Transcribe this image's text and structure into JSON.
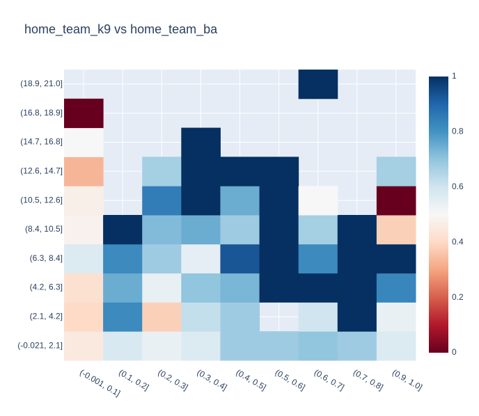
{
  "chart_data": {
    "type": "heatmap",
    "title": "home_team_k9 vs home_team_ba",
    "x_categories": [
      "(-0.001, 0.1]",
      "(0.1, 0.2]",
      "(0.2, 0.3]",
      "(0.3, 0.4]",
      "(0.4, 0.5]",
      "(0.5, 0.6]",
      "(0.6, 0.7]",
      "(0.7, 0.8]",
      "(0.9, 1.0]"
    ],
    "y_categories": [
      "(-0.021, 2.1]",
      "(2.1, 4.2]",
      "(4.2, 6.3]",
      "(6.3, 8.4]",
      "(8.4, 10.5]",
      "(10.5, 12.6]",
      "(12.6, 14.7]",
      "(14.7, 16.8]",
      "(16.8, 18.9]",
      "(18.9, 21.0]"
    ],
    "z": [
      [
        0.45,
        0.58,
        0.54,
        0.57,
        0.68,
        0.68,
        0.7,
        0.68,
        0.57
      ],
      [
        0.4,
        0.82,
        0.38,
        0.62,
        0.68,
        null,
        0.6,
        1.0,
        0.54
      ],
      [
        0.42,
        0.75,
        0.54,
        0.7,
        0.73,
        1.0,
        1.0,
        1.0,
        0.83
      ],
      [
        0.57,
        0.82,
        0.68,
        0.55,
        0.93,
        1.0,
        0.82,
        1.0,
        1.0
      ],
      [
        0.48,
        1.0,
        0.72,
        0.75,
        0.68,
        1.0,
        0.67,
        1.0,
        0.38
      ],
      [
        0.47,
        null,
        0.85,
        1.0,
        0.75,
        1.0,
        0.5,
        null,
        0.0
      ],
      [
        0.33,
        null,
        0.67,
        1.0,
        1.0,
        1.0,
        null,
        null,
        0.67
      ],
      [
        0.5,
        null,
        null,
        1.0,
        null,
        null,
        null,
        null,
        null
      ],
      [
        0.0,
        null,
        null,
        null,
        null,
        null,
        null,
        null,
        null
      ],
      [
        null,
        null,
        null,
        null,
        null,
        null,
        1.0,
        null,
        null
      ]
    ],
    "colorscale": "RdBu",
    "zmin": 0,
    "zmax": 1,
    "colorbar_ticks": [
      "0",
      "0.2",
      "0.4",
      "0.6",
      "0.8",
      "1"
    ],
    "colorbar_values": [
      0,
      0.2,
      0.4,
      0.6,
      0.8,
      1
    ],
    "colors": [
      "#67001f",
      "#b2182b",
      "#d6604d",
      "#f4a582",
      "#fddbc7",
      "#f7f7f7",
      "#d1e5f0",
      "#92c5de",
      "#4393c3",
      "#2166ac",
      "#053061"
    ],
    "background_color": "#e5ecf6",
    "grid": true,
    "legend": "colorbar-right"
  }
}
